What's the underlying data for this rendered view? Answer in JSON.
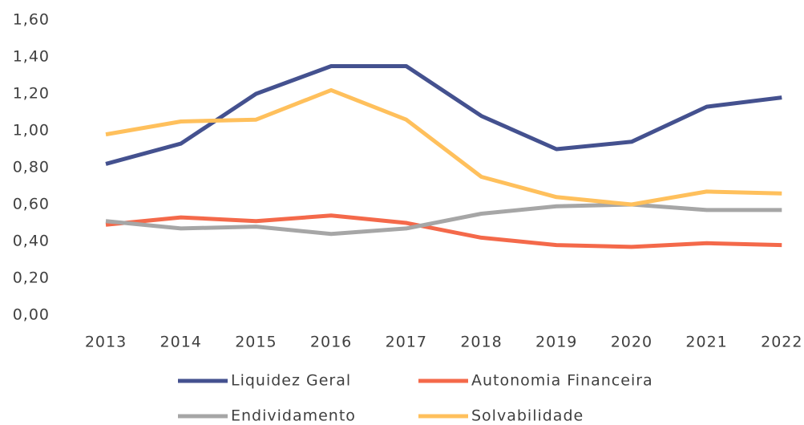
{
  "chart_data": {
    "type": "line",
    "categories": [
      "2013",
      "2014",
      "2015",
      "2016",
      "2017",
      "2018",
      "2019",
      "2020",
      "2021",
      "2022"
    ],
    "series": [
      {
        "name": "Liquidez Geral",
        "color": "#44518f",
        "values": [
          0.82,
          0.93,
          1.2,
          1.35,
          1.35,
          1.08,
          0.9,
          0.94,
          1.13,
          1.18
        ]
      },
      {
        "name": "Autonomia Financeira",
        "color": "#f4694a",
        "values": [
          0.49,
          0.53,
          0.51,
          0.54,
          0.5,
          0.42,
          0.38,
          0.37,
          0.39,
          0.38
        ]
      },
      {
        "name": "Endividamento",
        "color": "#a6a6a6",
        "values": [
          0.51,
          0.47,
          0.48,
          0.44,
          0.47,
          0.55,
          0.59,
          0.6,
          0.57,
          0.57
        ]
      },
      {
        "name": "Solvabilidade",
        "color": "#ffc05c",
        "values": [
          0.98,
          1.05,
          1.06,
          1.22,
          1.06,
          0.75,
          0.64,
          0.6,
          0.67,
          0.66
        ]
      }
    ],
    "ylim": [
      0,
      1.6
    ],
    "yticks": [
      {
        "value": 0,
        "label": "0,00"
      },
      {
        "value": 0.2,
        "label": "0,20"
      },
      {
        "value": 0.4,
        "label": "0,40"
      },
      {
        "value": 0.6,
        "label": "0,60"
      },
      {
        "value": 0.8,
        "label": "0,80"
      },
      {
        "value": 1.0,
        "label": "1,00"
      },
      {
        "value": 1.2,
        "label": "1,20"
      },
      {
        "value": 1.4,
        "label": "1,40"
      },
      {
        "value": 1.6,
        "label": "1,60"
      }
    ],
    "grid": false,
    "legend": "bottom"
  }
}
